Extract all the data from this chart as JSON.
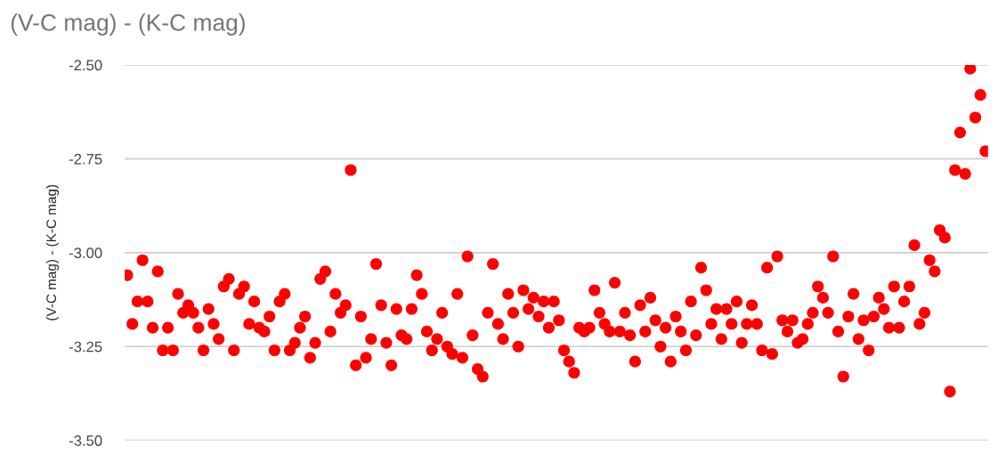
{
  "chart_data": {
    "type": "scatter",
    "title": "(V-C mag) - (K-C mag)",
    "ylabel": "(V-C mag) - (K-C mag)",
    "categories": [
      null,
      null,
      null,
      null,
      null,
      null,
      null,
      null,
      null,
      null,
      null,
      null,
      null,
      null,
      null,
      null,
      null,
      null,
      null,
      null,
      null,
      null,
      null,
      null,
      null,
      null,
      null,
      null,
      null,
      null,
      null,
      null,
      null,
      null,
      null,
      null,
      null,
      null,
      null,
      null,
      null,
      null,
      null,
      null,
      null,
      null,
      null,
      null,
      null,
      null,
      null,
      null,
      null,
      null,
      null,
      null,
      null,
      null,
      null,
      null,
      null,
      null,
      null,
      null,
      null,
      null,
      null,
      null,
      null,
      null,
      null,
      null,
      null,
      null,
      null,
      null,
      null,
      null,
      null,
      null,
      null,
      null,
      null,
      null,
      null,
      null,
      null,
      null,
      null,
      null,
      null,
      null,
      null,
      null,
      null,
      null,
      null,
      null,
      null,
      null,
      null,
      null,
      null,
      null,
      null,
      null,
      null,
      null,
      null,
      null,
      null,
      null,
      null,
      null,
      null,
      null,
      null,
      null,
      null,
      null,
      null,
      null,
      null,
      null,
      null,
      null,
      null,
      null,
      null,
      null,
      null,
      null,
      null,
      null,
      null,
      null,
      null,
      null,
      null,
      null,
      null,
      null,
      null,
      null,
      null,
      null,
      null,
      null,
      null,
      null,
      null,
      null,
      null,
      null,
      null,
      null,
      null,
      null,
      null,
      null,
      null,
      null,
      null,
      null,
      null,
      null,
      null,
      null,
      null,
      null
    ],
    "series": [
      {
        "color": "#ff0000",
        "values": [
          -3.06,
          -3.19,
          -3.13,
          -3.02,
          -3.13,
          -3.2,
          -3.05,
          -3.26,
          -3.2,
          -3.26,
          -3.11,
          -3.16,
          -3.14,
          -3.16,
          -3.2,
          -3.26,
          -3.15,
          -3.19,
          -3.23,
          -3.09,
          -3.07,
          -3.26,
          -3.11,
          -3.09,
          -3.19,
          -3.13,
          -3.2,
          -3.21,
          -3.17,
          -3.26,
          -3.13,
          -3.11,
          -3.26,
          -3.24,
          -3.2,
          -3.17,
          -3.28,
          -3.24,
          -3.07,
          -3.05,
          -3.21,
          -3.11,
          -3.16,
          -3.14,
          -2.78,
          -3.3,
          -3.17,
          -3.28,
          -3.23,
          -3.03,
          -3.14,
          -3.24,
          -3.3,
          -3.15,
          -3.22,
          -3.23,
          -3.15,
          -3.06,
          -3.11,
          -3.21,
          -3.26,
          -3.23,
          -3.16,
          -3.25,
          -3.27,
          -3.11,
          -3.28,
          -3.01,
          -3.22,
          -3.31,
          -3.33,
          -3.16,
          -3.03,
          -3.19,
          -3.23,
          -3.11,
          -3.16,
          -3.25,
          -3.1,
          -3.15,
          -3.12,
          -3.17,
          -3.13,
          -3.2,
          -3.13,
          -3.18,
          -3.26,
          -3.29,
          -3.32,
          -3.2,
          -3.21,
          -3.2,
          -3.1,
          -3.16,
          -3.19,
          -3.21,
          -3.08,
          -3.21,
          -3.16,
          -3.22,
          -3.29,
          -3.14,
          -3.21,
          -3.12,
          -3.18,
          -3.25,
          -3.2,
          -3.29,
          -3.17,
          -3.21,
          -3.26,
          -3.13,
          -3.22,
          -3.04,
          -3.1,
          -3.19,
          -3.15,
          -3.23,
          -3.15,
          -3.19,
          -3.13,
          -3.24,
          -3.19,
          -3.14,
          -3.19,
          -3.26,
          -3.04,
          -3.27,
          -3.01,
          -3.18,
          -3.21,
          -3.18,
          -3.24,
          -3.23,
          -3.19,
          -3.16,
          -3.09,
          -3.12,
          -3.16,
          -3.01,
          -3.21,
          -3.33,
          -3.17,
          -3.11,
          -3.23,
          -3.18,
          -3.26,
          -3.17,
          -3.12,
          -3.15,
          -3.2,
          -3.09,
          -3.2,
          -3.13,
          -3.09,
          -2.98,
          -3.19,
          -3.16,
          -3.02,
          -3.05,
          -2.94,
          -2.96,
          -3.37,
          -2.78,
          -2.68,
          -2.79,
          -2.51,
          -2.64,
          -2.58,
          -2.73
        ]
      }
    ],
    "ylim": [
      -3.5,
      -2.5
    ],
    "yticks": [
      {
        "value": -3.5,
        "label": "-3.50"
      },
      {
        "value": -3.25,
        "label": "-3.25"
      },
      {
        "value": -3.0,
        "label": "-3.00"
      },
      {
        "value": -2.75,
        "label": "-2.75"
      },
      {
        "value": -2.5,
        "label": "-2.50"
      }
    ],
    "grid": "y",
    "tick_labels": "y",
    "marker": "circle"
  }
}
